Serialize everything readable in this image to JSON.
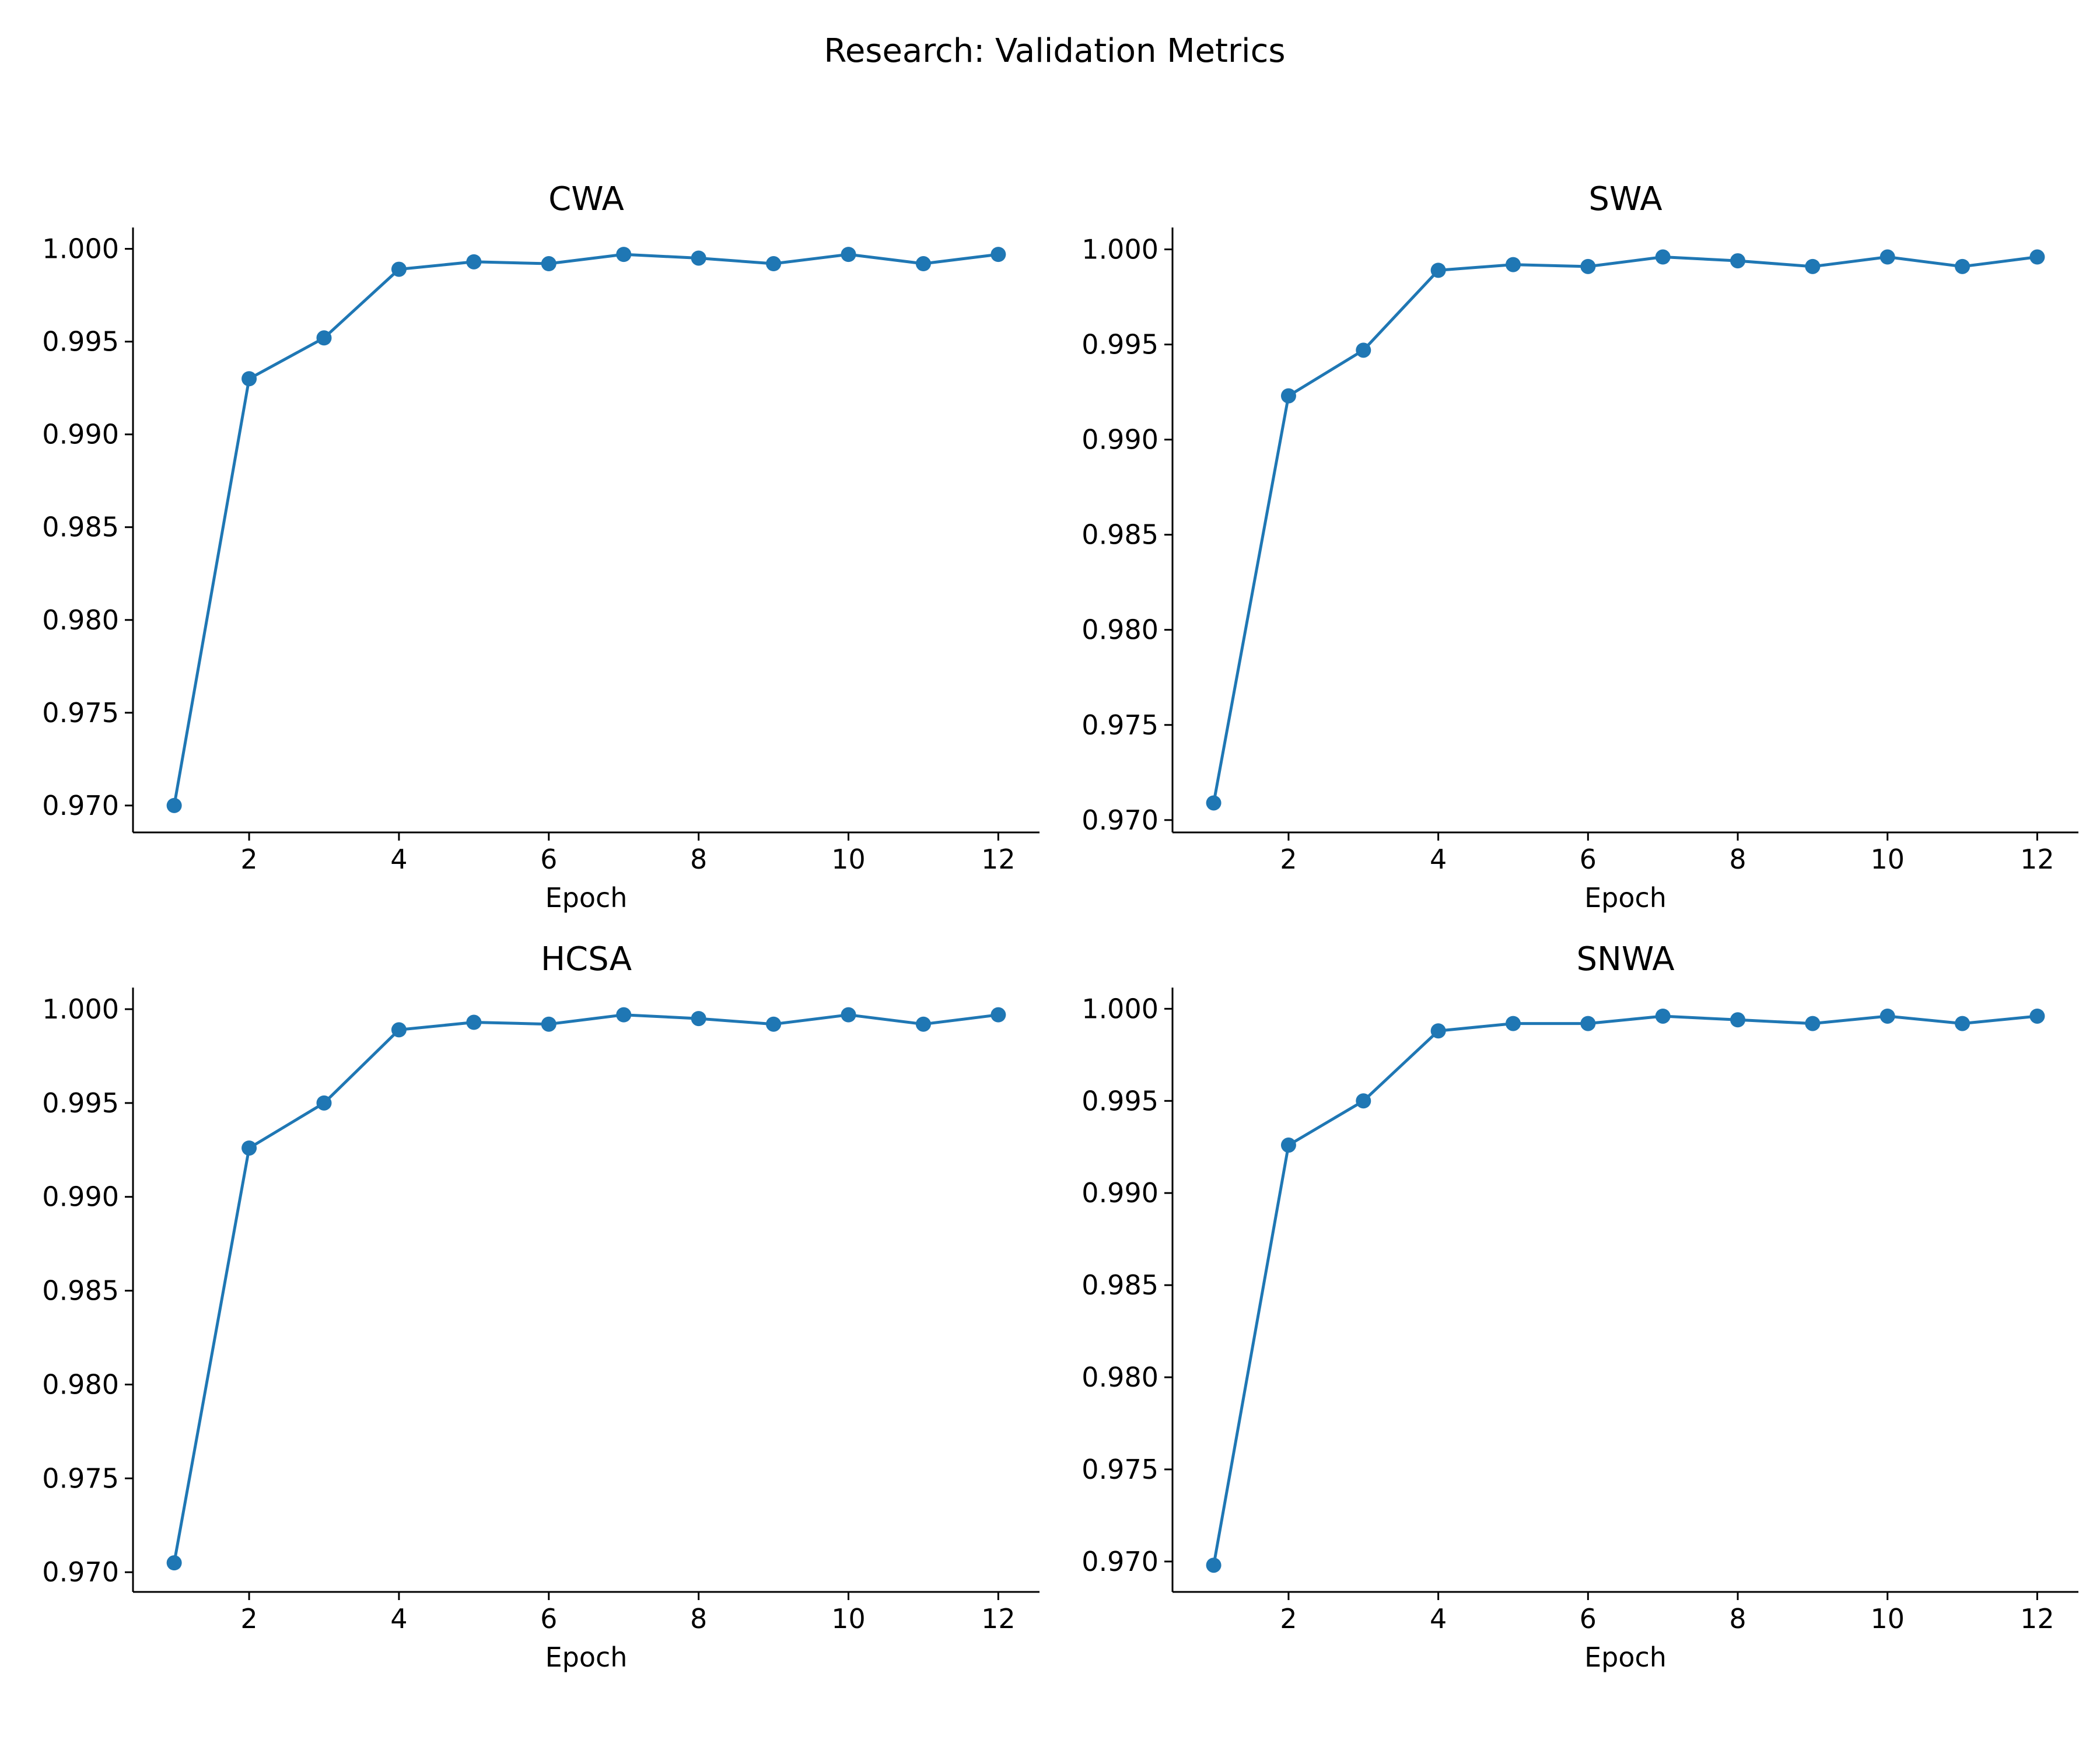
{
  "figure": {
    "title": "Research: Validation Metrics"
  },
  "colors": {
    "series": "#1f77b4",
    "axis": "#000000"
  },
  "chart_data": [
    {
      "type": "line",
      "title": "CWA",
      "xlabel": "Epoch",
      "ylabel": "",
      "x": [
        1,
        2,
        3,
        4,
        5,
        6,
        7,
        8,
        9,
        10,
        11,
        12
      ],
      "series": [
        {
          "values": [
            0.97,
            0.993,
            0.9952,
            0.9989,
            0.9993,
            0.9992,
            0.9997,
            0.9995,
            0.9992,
            0.9997,
            0.9992,
            0.9997
          ]
        }
      ],
      "xticks": [
        2,
        4,
        6,
        8,
        10,
        12
      ],
      "yticks": [
        0.97,
        0.975,
        0.98,
        0.985,
        0.99,
        0.995,
        1.0
      ],
      "ytick_labels": [
        "0.970",
        "0.975",
        "0.980",
        "0.985",
        "0.990",
        "0.995",
        "1.000"
      ],
      "xlim": [
        0.45,
        12.55
      ],
      "ylim": [
        0.96855,
        1.00115
      ],
      "grid": false,
      "marker": "circle"
    },
    {
      "type": "line",
      "title": "SWA",
      "xlabel": "Epoch",
      "ylabel": "",
      "x": [
        1,
        2,
        3,
        4,
        5,
        6,
        7,
        8,
        9,
        10,
        11,
        12
      ],
      "series": [
        {
          "values": [
            0.9709,
            0.9923,
            0.9947,
            0.9989,
            0.9992,
            0.9991,
            0.9996,
            0.9994,
            0.9991,
            0.9996,
            0.9991,
            0.9996
          ]
        }
      ],
      "xticks": [
        2,
        4,
        6,
        8,
        10,
        12
      ],
      "yticks": [
        0.97,
        0.975,
        0.98,
        0.985,
        0.99,
        0.995,
        1.0
      ],
      "ytick_labels": [
        "0.970",
        "0.975",
        "0.980",
        "0.985",
        "0.990",
        "0.995",
        "1.000"
      ],
      "xlim": [
        0.45,
        12.55
      ],
      "ylim": [
        0.96935,
        1.00115
      ],
      "grid": false,
      "marker": "circle"
    },
    {
      "type": "line",
      "title": "HCSA",
      "xlabel": "Epoch",
      "ylabel": "",
      "x": [
        1,
        2,
        3,
        4,
        5,
        6,
        7,
        8,
        9,
        10,
        11,
        12
      ],
      "series": [
        {
          "values": [
            0.9705,
            0.9926,
            0.995,
            0.9989,
            0.9993,
            0.9992,
            0.9997,
            0.9995,
            0.9992,
            0.9997,
            0.9992,
            0.9997
          ]
        }
      ],
      "xticks": [
        2,
        4,
        6,
        8,
        10,
        12
      ],
      "yticks": [
        0.97,
        0.975,
        0.98,
        0.985,
        0.99,
        0.995,
        1.0
      ],
      "ytick_labels": [
        "0.970",
        "0.975",
        "0.980",
        "0.985",
        "0.990",
        "0.995",
        "1.000"
      ],
      "xlim": [
        0.45,
        12.55
      ],
      "ylim": [
        0.96895,
        1.00115
      ],
      "grid": false,
      "marker": "circle"
    },
    {
      "type": "line",
      "title": "SNWA",
      "xlabel": "Epoch",
      "ylabel": "",
      "x": [
        1,
        2,
        3,
        4,
        5,
        6,
        7,
        8,
        9,
        10,
        11,
        12
      ],
      "series": [
        {
          "values": [
            0.9698,
            0.9926,
            0.995,
            0.9988,
            0.9992,
            0.9992,
            0.9996,
            0.9994,
            0.9992,
            0.9996,
            0.9992,
            0.9996
          ]
        }
      ],
      "xticks": [
        2,
        4,
        6,
        8,
        10,
        12
      ],
      "yticks": [
        0.97,
        0.975,
        0.98,
        0.985,
        0.99,
        0.995,
        1.0
      ],
      "ytick_labels": [
        "0.970",
        "0.975",
        "0.980",
        "0.985",
        "0.990",
        "0.995",
        "1.000"
      ],
      "xlim": [
        0.45,
        12.55
      ],
      "ylim": [
        0.96835,
        1.00115
      ],
      "grid": false,
      "marker": "circle"
    }
  ]
}
